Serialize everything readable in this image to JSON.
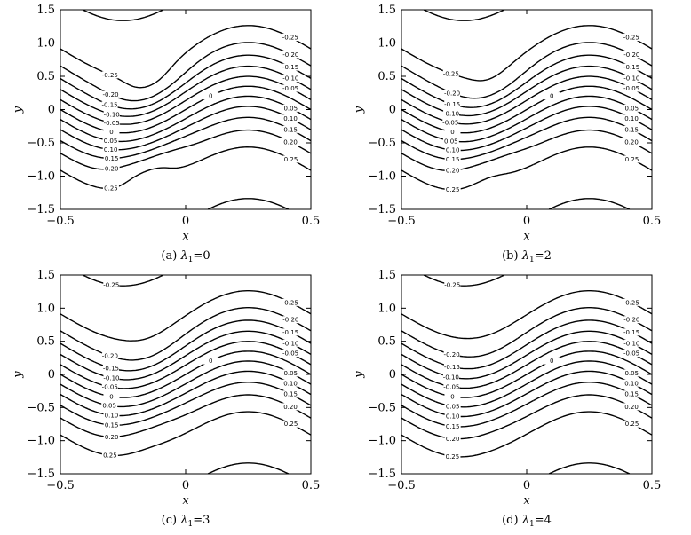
{
  "chart_data": [
    {
      "type": "line",
      "panel": "a",
      "caption_prefix": "(a) ",
      "lambda_sym": "λ",
      "lambda_sub": "1",
      "lambda_value": "=0",
      "xlabel": "x",
      "ylabel": "y",
      "xlim": [
        -0.5,
        0.5
      ],
      "ylim": [
        -1.5,
        1.5
      ],
      "xticks": [
        "−0.5",
        "0",
        "0.5"
      ],
      "yticks": [
        "1.5",
        "1.0",
        "0.5",
        "0",
        "−0.5",
        "−1.0",
        "−1.5"
      ],
      "contour_levels": [
        "-0.25",
        "-0.20",
        "-0.15",
        "-0.10",
        "-0.05",
        "0",
        "0.05",
        "0.10",
        "0.15",
        "0.20",
        "0.25"
      ],
      "eddy_scale": 1.0
    },
    {
      "type": "line",
      "panel": "b",
      "caption_prefix": "(b) ",
      "lambda_sym": "λ",
      "lambda_sub": "1",
      "lambda_value": "=2",
      "xlabel": "x",
      "ylabel": "y",
      "xlim": [
        -0.5,
        0.5
      ],
      "ylim": [
        -1.5,
        1.5
      ],
      "xticks": [
        "−0.5",
        "0",
        "0.5"
      ],
      "yticks": [
        "1.5",
        "1.0",
        "0.5",
        "0",
        "−0.5",
        "−1.0",
        "−1.5"
      ],
      "contour_levels": [
        "-0.25",
        "-0.20",
        "-0.15",
        "-0.10",
        "-0.05",
        "0",
        "0.05",
        "0.10",
        "0.15",
        "0.20",
        "0.25"
      ],
      "eddy_scale": 0.75
    },
    {
      "type": "line",
      "panel": "c",
      "caption_prefix": "(c) ",
      "lambda_sym": "λ",
      "lambda_sub": "1",
      "lambda_value": "=3",
      "xlabel": "x",
      "ylabel": "y",
      "xlim": [
        -0.5,
        0.5
      ],
      "ylim": [
        -1.5,
        1.5
      ],
      "xticks": [
        "−0.5",
        "0",
        "0.5"
      ],
      "yticks": [
        "1.5",
        "1.0",
        "0.5",
        "0",
        "−0.5",
        "−1.0",
        "−1.5"
      ],
      "contour_levels": [
        "-0.25",
        "-0.20",
        "-0.15",
        "-0.10",
        "-0.05",
        "0",
        "0.05",
        "0.10",
        "0.15",
        "0.20",
        "0.25"
      ],
      "eddy_scale": 0.5
    },
    {
      "type": "line",
      "panel": "d",
      "caption_prefix": "(d) ",
      "lambda_sym": "λ",
      "lambda_sub": "1",
      "lambda_value": "=4",
      "xlabel": "x",
      "ylabel": "y",
      "xlim": [
        -0.5,
        0.5
      ],
      "ylim": [
        -1.5,
        1.5
      ],
      "xticks": [
        "−0.5",
        "0",
        "0.5"
      ],
      "yticks": [
        "1.5",
        "1.0",
        "0.5",
        "0",
        "−0.5",
        "−1.0",
        "−1.5"
      ],
      "contour_levels": [
        "-0.25",
        "-0.20",
        "-0.15",
        "-0.10",
        "-0.05",
        "0",
        "0.05",
        "0.10",
        "0.15",
        "0.20",
        "0.25"
      ],
      "eddy_scale": 0.25
    }
  ]
}
